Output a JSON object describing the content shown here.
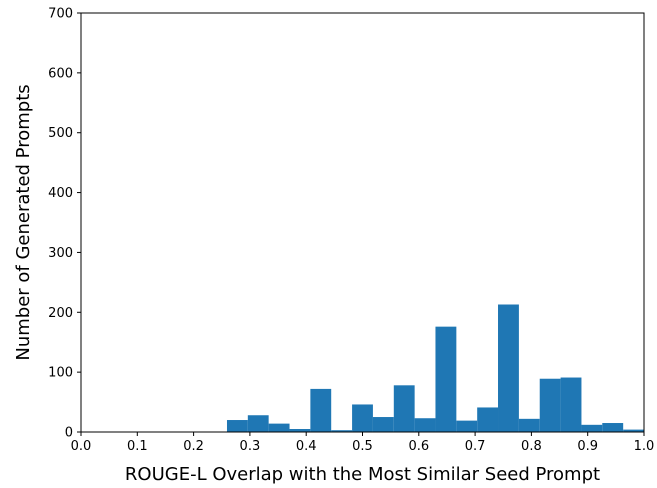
{
  "chart_data": {
    "type": "bar",
    "title": "",
    "xlabel": "ROUGE-L Overlap with the Most Similar Seed Prompt",
    "ylabel": "Number of Generated Prompts",
    "xlim": [
      0.0,
      1.0
    ],
    "ylim": [
      0,
      700
    ],
    "xticks": [
      "0.0",
      "0.1",
      "0.2",
      "0.3",
      "0.4",
      "0.5",
      "0.6",
      "0.7",
      "0.8",
      "0.9",
      "1.0"
    ],
    "yticks": [
      "0",
      "100",
      "200",
      "300",
      "400",
      "500",
      "600",
      "700"
    ],
    "bar_color": "#1f77b4",
    "bins": [
      {
        "x0": 0.2593,
        "x1": 0.2963,
        "value": 20
      },
      {
        "x0": 0.2963,
        "x1": 0.3333,
        "value": 28
      },
      {
        "x0": 0.3333,
        "x1": 0.3704,
        "value": 14
      },
      {
        "x0": 0.3704,
        "x1": 0.4074,
        "value": 5
      },
      {
        "x0": 0.4074,
        "x1": 0.4444,
        "value": 72
      },
      {
        "x0": 0.4444,
        "x1": 0.4815,
        "value": 3
      },
      {
        "x0": 0.4815,
        "x1": 0.5185,
        "value": 46
      },
      {
        "x0": 0.5185,
        "x1": 0.5556,
        "value": 25
      },
      {
        "x0": 0.5556,
        "x1": 0.5926,
        "value": 78
      },
      {
        "x0": 0.5926,
        "x1": 0.6296,
        "value": 23
      },
      {
        "x0": 0.6296,
        "x1": 0.6667,
        "value": 176
      },
      {
        "x0": 0.6667,
        "x1": 0.7037,
        "value": 19
      },
      {
        "x0": 0.7037,
        "x1": 0.7407,
        "value": 41
      },
      {
        "x0": 0.7407,
        "x1": 0.7778,
        "value": 213
      },
      {
        "x0": 0.7778,
        "x1": 0.8148,
        "value": 22
      },
      {
        "x0": 0.8148,
        "x1": 0.8519,
        "value": 89
      },
      {
        "x0": 0.8519,
        "x1": 0.8889,
        "value": 91
      },
      {
        "x0": 0.8889,
        "x1": 0.9259,
        "value": 12
      },
      {
        "x0": 0.9259,
        "x1": 0.963,
        "value": 15
      },
      {
        "x0": 0.963,
        "x1": 1.0,
        "value": 4
      }
    ]
  }
}
